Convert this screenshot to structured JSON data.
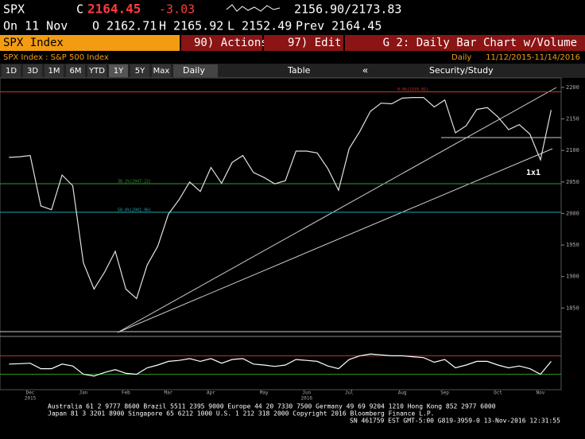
{
  "header": {
    "ticker": "SPX",
    "close_prefix": "C",
    "close": "2164.45",
    "change": "-3.03",
    "range": "2156.90/2173.83",
    "date": "On 11 Nov",
    "open": "O 2162.71",
    "high": "H 2165.92",
    "low": "L 2152.49",
    "prev": "Prev 2164.45"
  },
  "menu": {
    "security": "SPX Index",
    "actions": "90) Actions",
    "edit": "97) Edit",
    "chart_name": "G 2: Daily Bar Chart w/Volume"
  },
  "subheader": {
    "name": "SPX Index : S&P 500 Index",
    "period": "Daily",
    "dates": "11/12/2015-11/14/2016"
  },
  "toolbar": {
    "ranges": [
      "1D",
      "3D",
      "1M",
      "6M",
      "YTD",
      "1Y",
      "5Y",
      "Max"
    ],
    "frequency": "Daily",
    "table": "Table",
    "study": "Security/Study"
  },
  "chart_data": [
    {
      "type": "line",
      "color": "#e0e0e0",
      "categories": [
        null,
        null,
        "Dec",
        null,
        null,
        null,
        null,
        "Jan",
        null,
        null,
        null,
        "Feb",
        null,
        null,
        null,
        "Mar",
        null,
        null,
        null,
        "Apr",
        null,
        null,
        null,
        null,
        "May",
        null,
        null,
        null,
        "Jun",
        null,
        null,
        null,
        "Jul",
        null,
        null,
        null,
        null,
        "Aug",
        null,
        null,
        null,
        "Sep",
        null,
        null,
        null,
        null,
        "Oct",
        null,
        null,
        null,
        "Nov",
        null
      ],
      "values": [
        2089,
        2090,
        2092,
        2012,
        2006,
        2061,
        2044,
        1922,
        1880,
        1907,
        1940,
        1880,
        1865,
        1918,
        1948,
        1999,
        2022,
        2050,
        2035,
        2073,
        2048,
        2081,
        2092,
        2065,
        2057,
        2047,
        2052,
        2099,
        2099,
        2096,
        2071,
        2037,
        2103,
        2130,
        2162,
        2175,
        2174,
        2183,
        2184,
        2184,
        2169,
        2180,
        2128,
        2139,
        2165,
        2168,
        2153,
        2133,
        2141,
        2126,
        2085,
        2164
      ],
      "year_labels": [
        {
          "index": 2,
          "label": "2015"
        },
        {
          "index": 28,
          "label": "2016"
        }
      ],
      "ylim": [
        1805,
        2215
      ],
      "yticks": [
        1850,
        1900,
        1950,
        2000,
        2050,
        2100,
        2150,
        2200
      ],
      "levels": [
        {
          "value": 2193,
          "label": "0.0%(2193.81)",
          "color": "#c0392b"
        },
        {
          "value": 2047.22,
          "label": "38.2%(2047.22)",
          "color": "#2e9e2e"
        },
        {
          "value": 2001.96,
          "label": "50.0%(2001.96)",
          "color": "#1aa7b0"
        }
      ],
      "annotation": "1x1"
    },
    {
      "type": "line",
      "color": "#ffffff",
      "ylim": [
        0,
        100
      ],
      "values": [
        52,
        53,
        54,
        42,
        42,
        52,
        48,
        30,
        26,
        34,
        40,
        32,
        30,
        44,
        50,
        58,
        60,
        64,
        58,
        64,
        54,
        62,
        64,
        52,
        50,
        47,
        50,
        62,
        60,
        58,
        48,
        42,
        62,
        70,
        74,
        72,
        70,
        70,
        68,
        66,
        56,
        62,
        44,
        50,
        58,
        58,
        50,
        44,
        48,
        42,
        30,
        58
      ],
      "levels": [
        {
          "value": 70,
          "color": "#c0392b"
        },
        {
          "value": 30,
          "color": "#2e9e2e"
        }
      ]
    }
  ],
  "footer": [
    "Australia 61 2 9777 8600 Brazil 5511 2395 9000 Europe 44 20 7330 7500 Germany 49 69 9204 1210 Hong Kong 852 2977 6000",
    "Japan 81 3 3201 8900        Singapore 65 6212 1000        U.S. 1 212 318 2000        Copyright 2016 Bloomberg Finance L.P.",
    "SN 461759 EST  GMT-5:00 G819-3959-0 13-Nov-2016 12:31:55"
  ]
}
